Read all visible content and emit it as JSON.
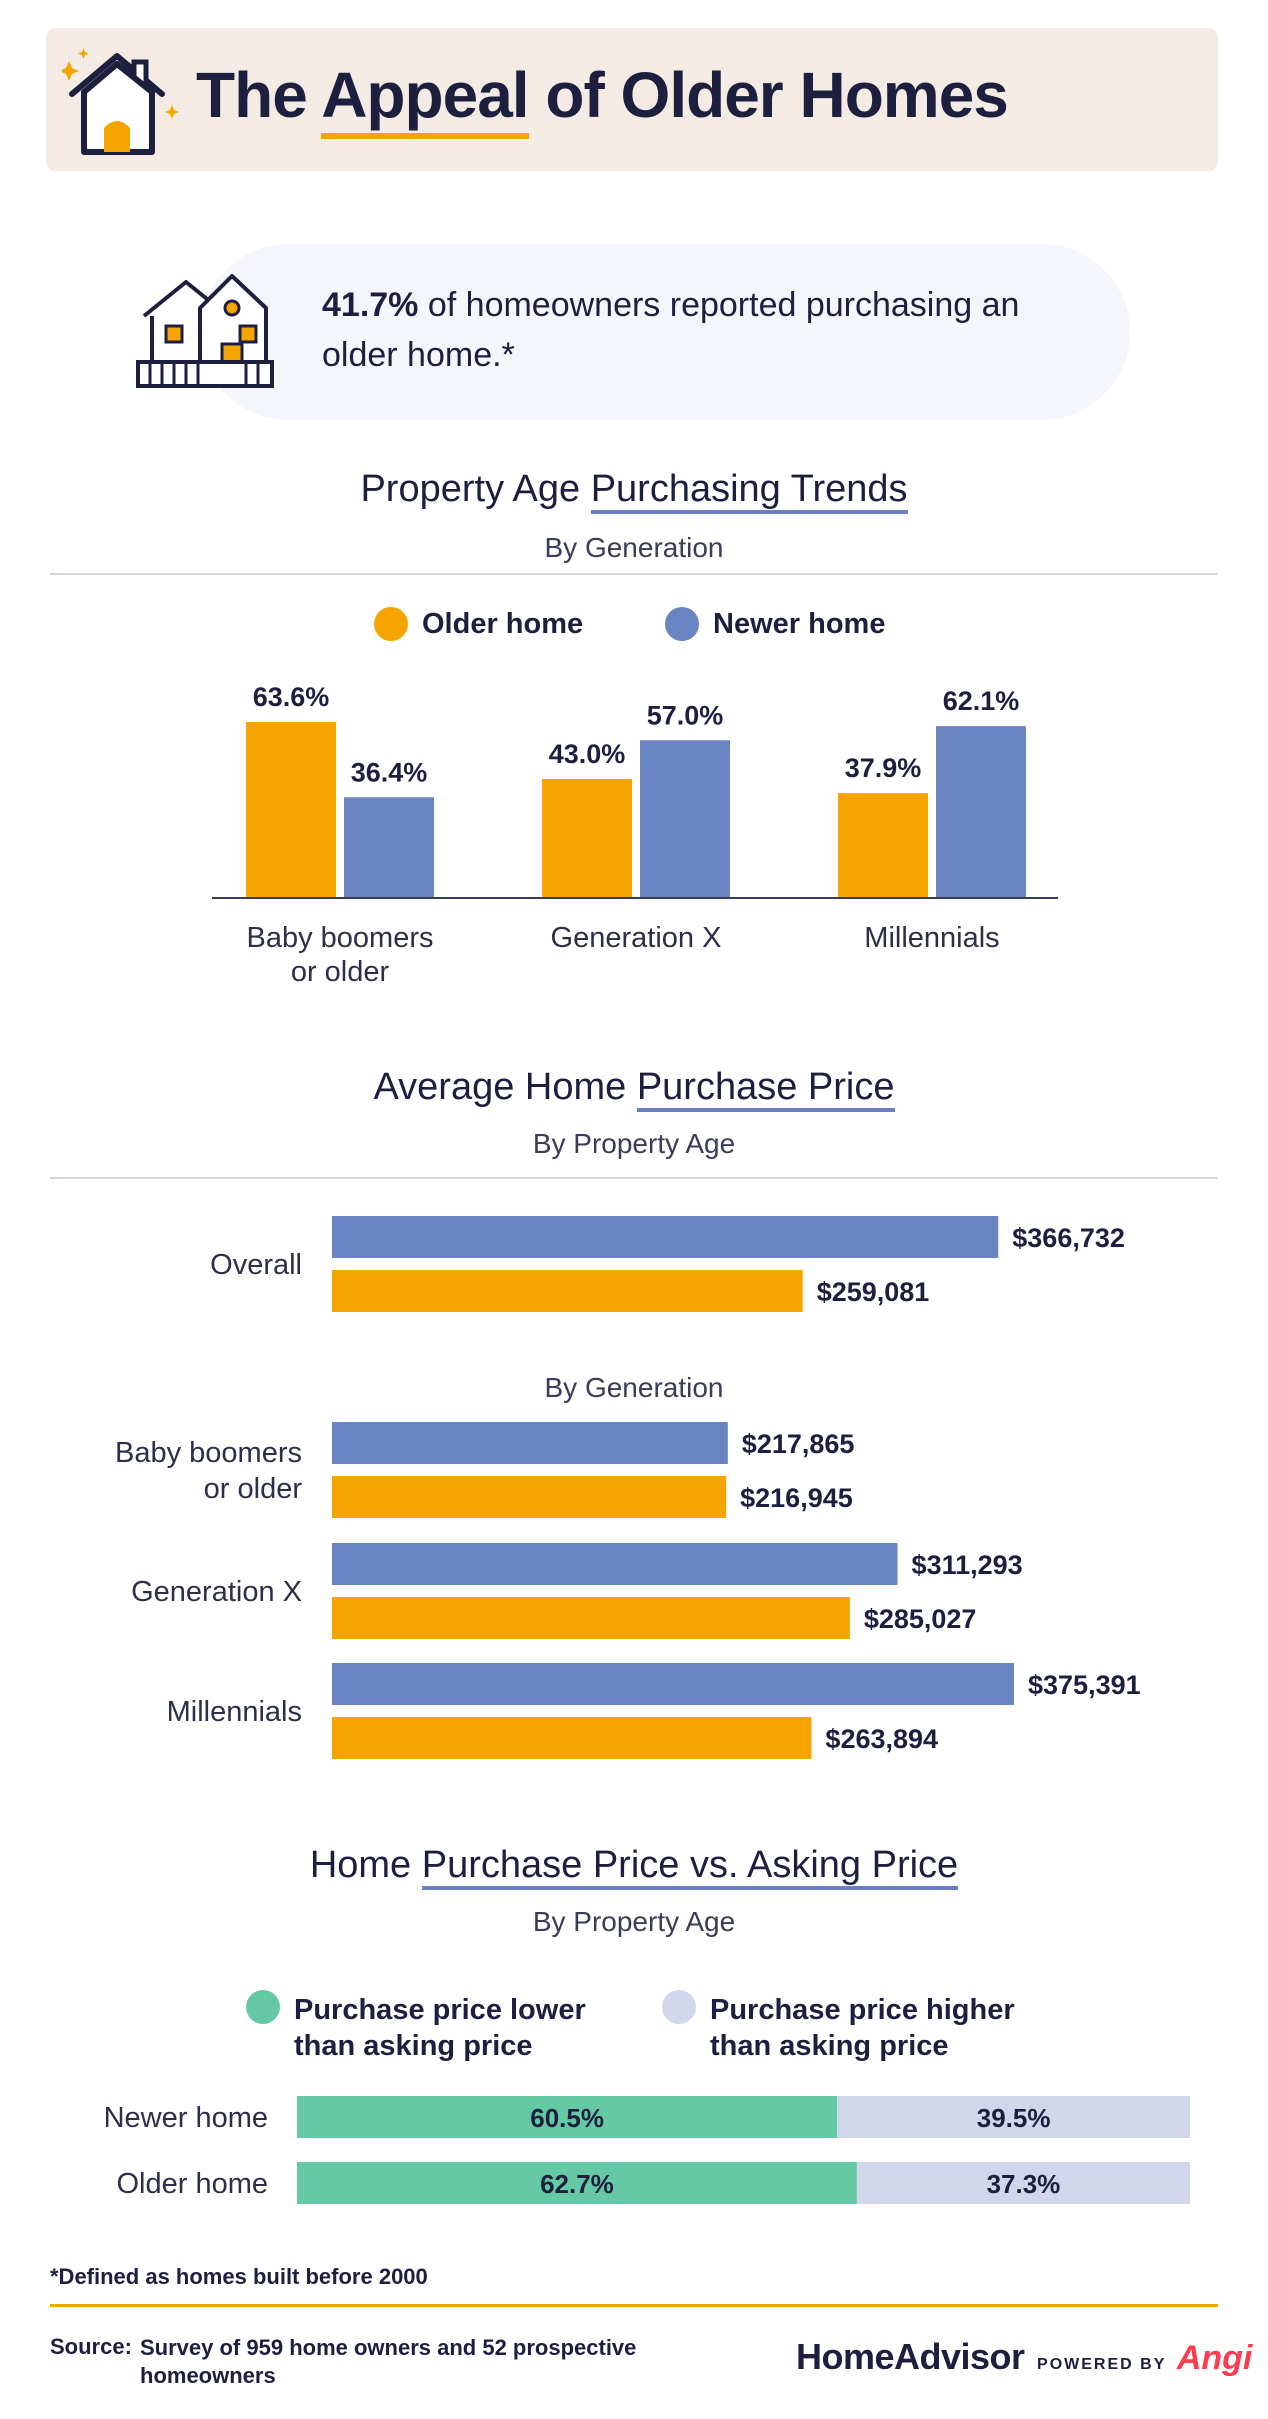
{
  "header": {
    "title_pre": "The ",
    "title_hl": "Appeal",
    "title_post": " of Older Homes",
    "icon": "house-icon"
  },
  "stat": {
    "value": "41.7%",
    "text": " of homeowners reported purchasing an older home.*",
    "icon": "house-illustration-icon"
  },
  "colors": {
    "older": "#f5a400",
    "newer": "#6a84c2",
    "lower": "#66c9a6",
    "higher": "#d2d6ea"
  },
  "section1": {
    "title_pre": "Property Age ",
    "title_hl": "Purchasing Trends",
    "subtitle": "By Generation",
    "legend": [
      "Older home",
      "Newer home"
    ]
  },
  "section2": {
    "title_pre": "Average Home ",
    "title_hl": "Purchase Price",
    "subtitle": "By Property Age",
    "inner_subtitle": "By Generation"
  },
  "section3": {
    "title_pre": "Home ",
    "title_hl": "Purchase Price vs. Asking Price",
    "subtitle": "By Property Age",
    "legend": [
      "Purchase price lower than asking price",
      "Purchase price higher than asking price"
    ],
    "legend_line1": [
      "Purchase price lower",
      "Purchase price higher"
    ],
    "legend_line2": [
      "than asking price",
      "than asking price"
    ]
  },
  "chart_data": [
    {
      "type": "bar",
      "title": "Property Age Purchasing Trends",
      "subtitle": "By Generation",
      "categories": [
        "Baby boomers or older",
        "Generation X",
        "Millennials"
      ],
      "category_lines": [
        [
          "Baby boomers",
          "or older"
        ],
        [
          "Generation X"
        ],
        [
          "Millennials"
        ]
      ],
      "series": [
        {
          "name": "Older home",
          "values": [
            63.6,
            43.0,
            37.9
          ],
          "labels": [
            "63.6%",
            "43.0%",
            "37.9%"
          ]
        },
        {
          "name": "Newer home",
          "values": [
            36.4,
            57.0,
            62.1
          ],
          "labels": [
            "36.4%",
            "57.0%",
            "62.1%"
          ]
        }
      ],
      "ylim": [
        0,
        70
      ],
      "grid": false
    },
    {
      "type": "bar",
      "orientation": "horizontal",
      "title": "Average Home Purchase Price",
      "subtitle": "By Property Age",
      "categories": [
        "Overall",
        "Baby boomers or older",
        "Generation X",
        "Millennials"
      ],
      "category_lines": [
        [
          "Overall"
        ],
        [
          "Baby boomers",
          "or older"
        ],
        [
          "Generation X"
        ],
        [
          "Millennials"
        ]
      ],
      "series": [
        {
          "name": "Newer home",
          "values": [
            366732,
            217865,
            311293,
            375391
          ],
          "labels": [
            "$366,732",
            "$217,865",
            "$311,293",
            "$375,391"
          ]
        },
        {
          "name": "Older home",
          "values": [
            259081,
            216945,
            285027,
            263894
          ],
          "labels": [
            "$259,081",
            "$216,945",
            "$285,027",
            "$263,894"
          ]
        }
      ],
      "xlim": [
        0,
        400000
      ],
      "grid": false
    },
    {
      "type": "bar",
      "orientation": "horizontal",
      "stacked": true,
      "title": "Home Purchase Price vs. Asking Price",
      "subtitle": "By Property Age",
      "categories": [
        "Newer home",
        "Older home"
      ],
      "series": [
        {
          "name": "Purchase price lower than asking price",
          "values": [
            60.5,
            62.7
          ],
          "labels": [
            "60.5%",
            "62.7%"
          ]
        },
        {
          "name": "Purchase price higher than asking price",
          "values": [
            39.5,
            37.3
          ],
          "labels": [
            "39.5%",
            "37.3%"
          ]
        }
      ],
      "xlim": [
        0,
        100
      ]
    }
  ],
  "footer": {
    "note": "*Defined as homes built before 2000",
    "source_label": "Source:",
    "source_line1": "Survey of 959 home owners and 52 prospective",
    "source_line2": "homeowners",
    "brand": "HomeAdvisor",
    "powered": "POWERED BY",
    "angi": "Angi"
  }
}
